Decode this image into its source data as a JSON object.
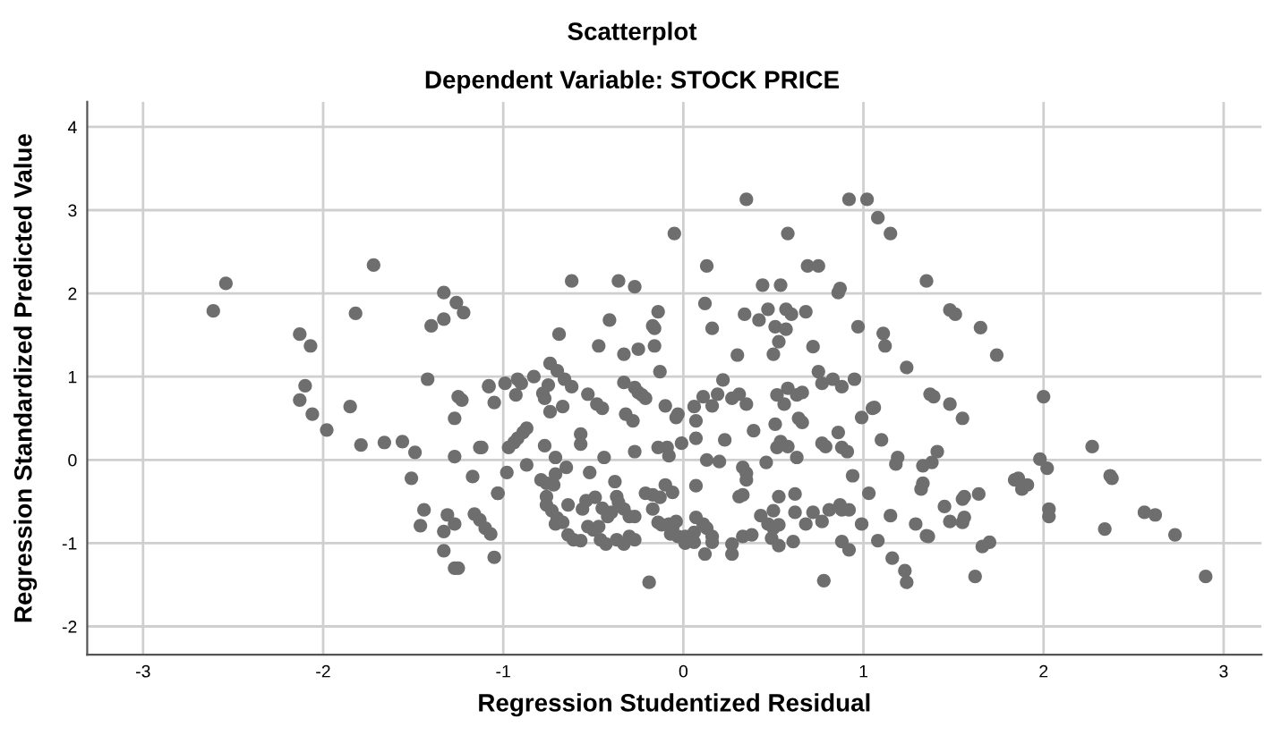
{
  "chart_data": {
    "type": "scatter",
    "title": "Scatterplot",
    "subtitle": "Dependent Variable: STOCK PRICE",
    "xlabel": "Regression Studentized Residual",
    "ylabel": "Regression Standardized Predicted Value",
    "xlim": [
      -3.31,
      3.21
    ],
    "ylim": [
      -2.34,
      4.3
    ],
    "xticks": [
      -3,
      -2,
      -1,
      0,
      1,
      2,
      3
    ],
    "yticks": [
      -2,
      -1,
      0,
      1,
      2,
      3,
      4
    ],
    "grid": true,
    "legend": false,
    "marker": "circle",
    "series": [
      {
        "color": "#6e6e6e",
        "x": [
          -2.54,
          -2.61,
          -1.72,
          -1.82,
          -2.13,
          -2.07,
          -2.1,
          -2.13,
          -2.06,
          -1.98,
          -1.85,
          -1.79,
          -1.66,
          -1.56,
          -1.49,
          -1.51,
          -1.44,
          -1.46,
          -1.33,
          -1.31,
          -1.27,
          -1.33,
          -1.27,
          -1.25,
          -1.42,
          -1.33,
          -1.26,
          -1.22,
          -1.33,
          -1.4,
          -1.25,
          -1.23,
          -1.27,
          -1.27,
          -1.17,
          -1.13,
          -1.16,
          -1.13,
          -1.1,
          -1.07,
          -1.08,
          -1.05,
          -1.03,
          -1.05,
          0.35,
          0.92,
          1.02,
          -0.05,
          0.58,
          0.13,
          0.69,
          0.75,
          -0.62,
          -0.36,
          -0.27,
          0.44,
          0.54,
          0.86,
          0.87,
          0.12,
          -0.41,
          -0.14,
          -0.17,
          -0.16,
          0.16,
          0.34,
          0.42,
          0.47,
          0.57,
          0.6,
          0.51,
          0.57,
          0.68,
          0.97,
          -0.69,
          -0.47,
          -0.33,
          -0.25,
          -0.16,
          -0.13,
          0.53,
          0.5,
          0.72,
          0.3,
          -0.74,
          -0.7,
          -0.66,
          -0.62,
          -0.83,
          -0.92,
          -0.9,
          -0.99,
          -1.08,
          -0.93,
          -0.75,
          -0.78,
          -0.77,
          -0.74,
          -0.67,
          -0.53,
          -0.48,
          -0.45,
          -0.33,
          -0.27,
          -0.25,
          -0.23,
          -0.21,
          -0.32,
          -0.28,
          -0.1,
          -0.03,
          -0.04,
          0.06,
          0.11,
          0.16,
          0.19,
          0.22,
          0.07,
          0.27,
          0.31,
          0.35,
          0.52,
          0.58,
          0.63,
          0.66,
          0.56,
          0.64,
          0.66,
          0.75,
          0.77,
          0.83,
          0.88,
          0.95,
          0.99,
          1.05,
          -1.12,
          -0.97,
          -0.94,
          -0.92,
          -0.89,
          -0.87,
          -0.98,
          -1.03,
          -0.87,
          -0.77,
          -0.71,
          -0.65,
          -0.57,
          -0.57,
          -0.52,
          -0.44,
          -0.27,
          -0.14,
          -0.09,
          -0.08,
          -0.01,
          0.07,
          0.07,
          0.13,
          0.2,
          0.23,
          0.33,
          0.35,
          0.35,
          0.39,
          0.46,
          0.51,
          0.52,
          0.54,
          0.58,
          0.63,
          0.77,
          0.79,
          0.88,
          0.91,
          0.86,
          0.94,
          -0.79,
          -0.76,
          -0.72,
          -0.71,
          -0.76,
          -0.76,
          -0.73,
          -0.7,
          -0.71,
          -0.67,
          -0.64,
          -0.64,
          -0.61,
          -0.57,
          -0.56,
          -0.54,
          -0.49,
          -0.53,
          -0.5,
          -0.45,
          -0.42,
          -0.4,
          -0.38,
          -0.37,
          -0.36,
          -0.33,
          -0.3,
          -0.46,
          -0.43,
          -0.37,
          -0.33,
          -0.3,
          -0.27,
          -0.47,
          -0.27,
          -0.19,
          -0.21,
          -0.17,
          -0.13,
          -0.17,
          -0.14,
          -0.12,
          -0.08,
          -0.06,
          -0.04,
          -0.1,
          -0.06,
          -0.07,
          -0.03,
          0.01,
          0.06,
          0.01,
          0.06,
          0.07,
          0.11,
          0.13,
          0.16,
          0.16,
          0.12,
          0.27,
          0.27,
          0.31,
          0.33,
          0.33,
          0.38,
          0.43,
          0.5,
          0.47,
          0.5,
          0.53,
          0.49,
          0.53,
          0.53,
          0.62,
          0.62,
          0.68,
          0.61,
          0.72,
          0.77,
          0.81,
          0.87,
          0.88,
          0.92,
          0.78,
          0.88,
          0.92,
          0.99,
          1.03,
          1.08,
          1.15,
          1.35,
          1.48,
          1.51,
          1.65,
          1.74,
          1.11,
          1.12,
          1.24,
          1.06,
          1.37,
          1.39,
          1.48,
          1.55,
          2.0,
          1.1,
          1.19,
          1.18,
          1.33,
          1.38,
          1.41,
          1.32,
          1.33,
          1.55,
          1.56,
          1.64,
          1.45,
          1.48,
          1.55,
          1.56,
          1.15,
          1.29,
          1.35,
          1.36,
          1.08,
          1.16,
          1.23,
          1.24,
          1.66,
          1.7,
          1.62,
          1.84,
          1.86,
          1.88,
          1.91,
          1.98,
          2.02,
          2.03,
          2.03,
          2.27,
          2.37,
          2.38,
          2.34,
          2.56,
          2.62,
          2.73,
          2.9
        ],
        "values": [
          2.12,
          1.79,
          2.34,
          1.76,
          1.51,
          1.37,
          0.89,
          0.72,
          0.55,
          0.36,
          0.64,
          0.18,
          0.21,
          0.22,
          0.09,
          -0.22,
          -0.6,
          -0.79,
          -0.86,
          -0.66,
          -0.77,
          -1.09,
          -1.3,
          -1.3,
          0.97,
          2.01,
          1.89,
          1.77,
          1.69,
          1.61,
          0.76,
          0.72,
          0.5,
          0.04,
          -0.2,
          0.15,
          -0.65,
          -0.72,
          -0.82,
          -0.89,
          0.89,
          0.69,
          -0.4,
          -1.17,
          3.13,
          3.13,
          3.13,
          2.72,
          2.72,
          2.33,
          2.33,
          2.33,
          2.15,
          2.15,
          2.08,
          2.1,
          2.1,
          2.01,
          2.06,
          1.88,
          1.68,
          1.78,
          1.61,
          1.58,
          1.58,
          1.75,
          1.68,
          1.81,
          1.81,
          1.75,
          1.6,
          1.57,
          1.78,
          1.6,
          1.51,
          1.37,
          1.27,
          1.33,
          1.37,
          1.06,
          1.42,
          1.27,
          1.36,
          1.26,
          1.16,
          1.07,
          0.97,
          0.88,
          1.0,
          0.97,
          0.92,
          0.92,
          0.88,
          0.78,
          0.9,
          0.8,
          0.74,
          0.58,
          0.64,
          0.79,
          0.67,
          0.62,
          0.93,
          0.87,
          0.81,
          0.78,
          0.74,
          0.55,
          0.47,
          0.65,
          0.55,
          0.51,
          0.64,
          0.76,
          0.65,
          0.79,
          0.96,
          0.47,
          0.74,
          0.79,
          0.67,
          0.78,
          0.86,
          0.78,
          0.81,
          0.67,
          0.5,
          0.45,
          1.06,
          0.92,
          0.97,
          0.88,
          0.97,
          0.51,
          0.62,
          0.15,
          0.15,
          0.21,
          0.26,
          0.33,
          0.38,
          -0.15,
          -0.4,
          -0.06,
          0.17,
          0.03,
          -0.09,
          0.31,
          0.19,
          -0.15,
          0.03,
          0.1,
          0.15,
          0.15,
          0.05,
          0.2,
          0.26,
          -0.31,
          0.0,
          -0.02,
          0.24,
          -0.09,
          -0.16,
          -0.24,
          0.35,
          -0.03,
          0.43,
          0.15,
          0.22,
          0.16,
          0.03,
          0.2,
          0.16,
          0.15,
          0.1,
          0.33,
          -0.19,
          -0.24,
          -0.28,
          -0.3,
          -0.17,
          -0.44,
          -0.54,
          -0.61,
          -0.7,
          -0.77,
          -0.75,
          -0.54,
          -0.9,
          -0.96,
          -0.97,
          -0.59,
          -0.49,
          -0.45,
          -0.8,
          -0.84,
          -0.58,
          -0.68,
          -0.63,
          -0.26,
          -0.44,
          -0.51,
          -0.59,
          -0.68,
          -0.96,
          -1.01,
          -0.96,
          -1.01,
          -0.92,
          -0.96,
          -0.8,
          -0.68,
          -1.47,
          -0.4,
          -0.42,
          -0.45,
          -0.59,
          -0.75,
          -0.78,
          -0.77,
          -0.82,
          -0.74,
          -0.3,
          -0.39,
          -0.89,
          -0.92,
          -0.92,
          -0.87,
          -1.0,
          -0.99,
          -0.69,
          -0.77,
          -0.82,
          -0.92,
          -0.99,
          -1.13,
          -1.01,
          -1.13,
          -0.44,
          -0.42,
          -0.92,
          -0.9,
          -0.67,
          -0.61,
          -0.77,
          -0.82,
          -0.78,
          -0.94,
          -1.03,
          -0.44,
          -0.41,
          -0.63,
          -0.77,
          -0.98,
          -0.63,
          -0.74,
          -0.6,
          -0.54,
          -0.6,
          -0.6,
          -1.45,
          -0.98,
          -1.08,
          -0.77,
          -0.4,
          2.91,
          2.72,
          2.15,
          1.8,
          1.75,
          1.59,
          1.26,
          1.52,
          1.37,
          1.11,
          0.63,
          0.79,
          0.76,
          0.67,
          0.5,
          0.76,
          0.24,
          0.03,
          -0.05,
          -0.07,
          -0.03,
          0.1,
          -0.35,
          -0.28,
          -0.47,
          -0.44,
          -0.41,
          -0.56,
          -0.74,
          -0.75,
          -0.69,
          -0.67,
          -0.77,
          -0.91,
          -0.92,
          -0.97,
          -1.18,
          -1.33,
          -1.47,
          -1.04,
          -0.99,
          -1.4,
          -0.24,
          -0.22,
          -0.35,
          -0.3,
          0.01,
          -0.1,
          -0.59,
          -0.68,
          0.16,
          -0.19,
          -0.22,
          -0.83,
          -0.63,
          -0.66,
          -0.9,
          -1.4
        ]
      }
    ]
  }
}
